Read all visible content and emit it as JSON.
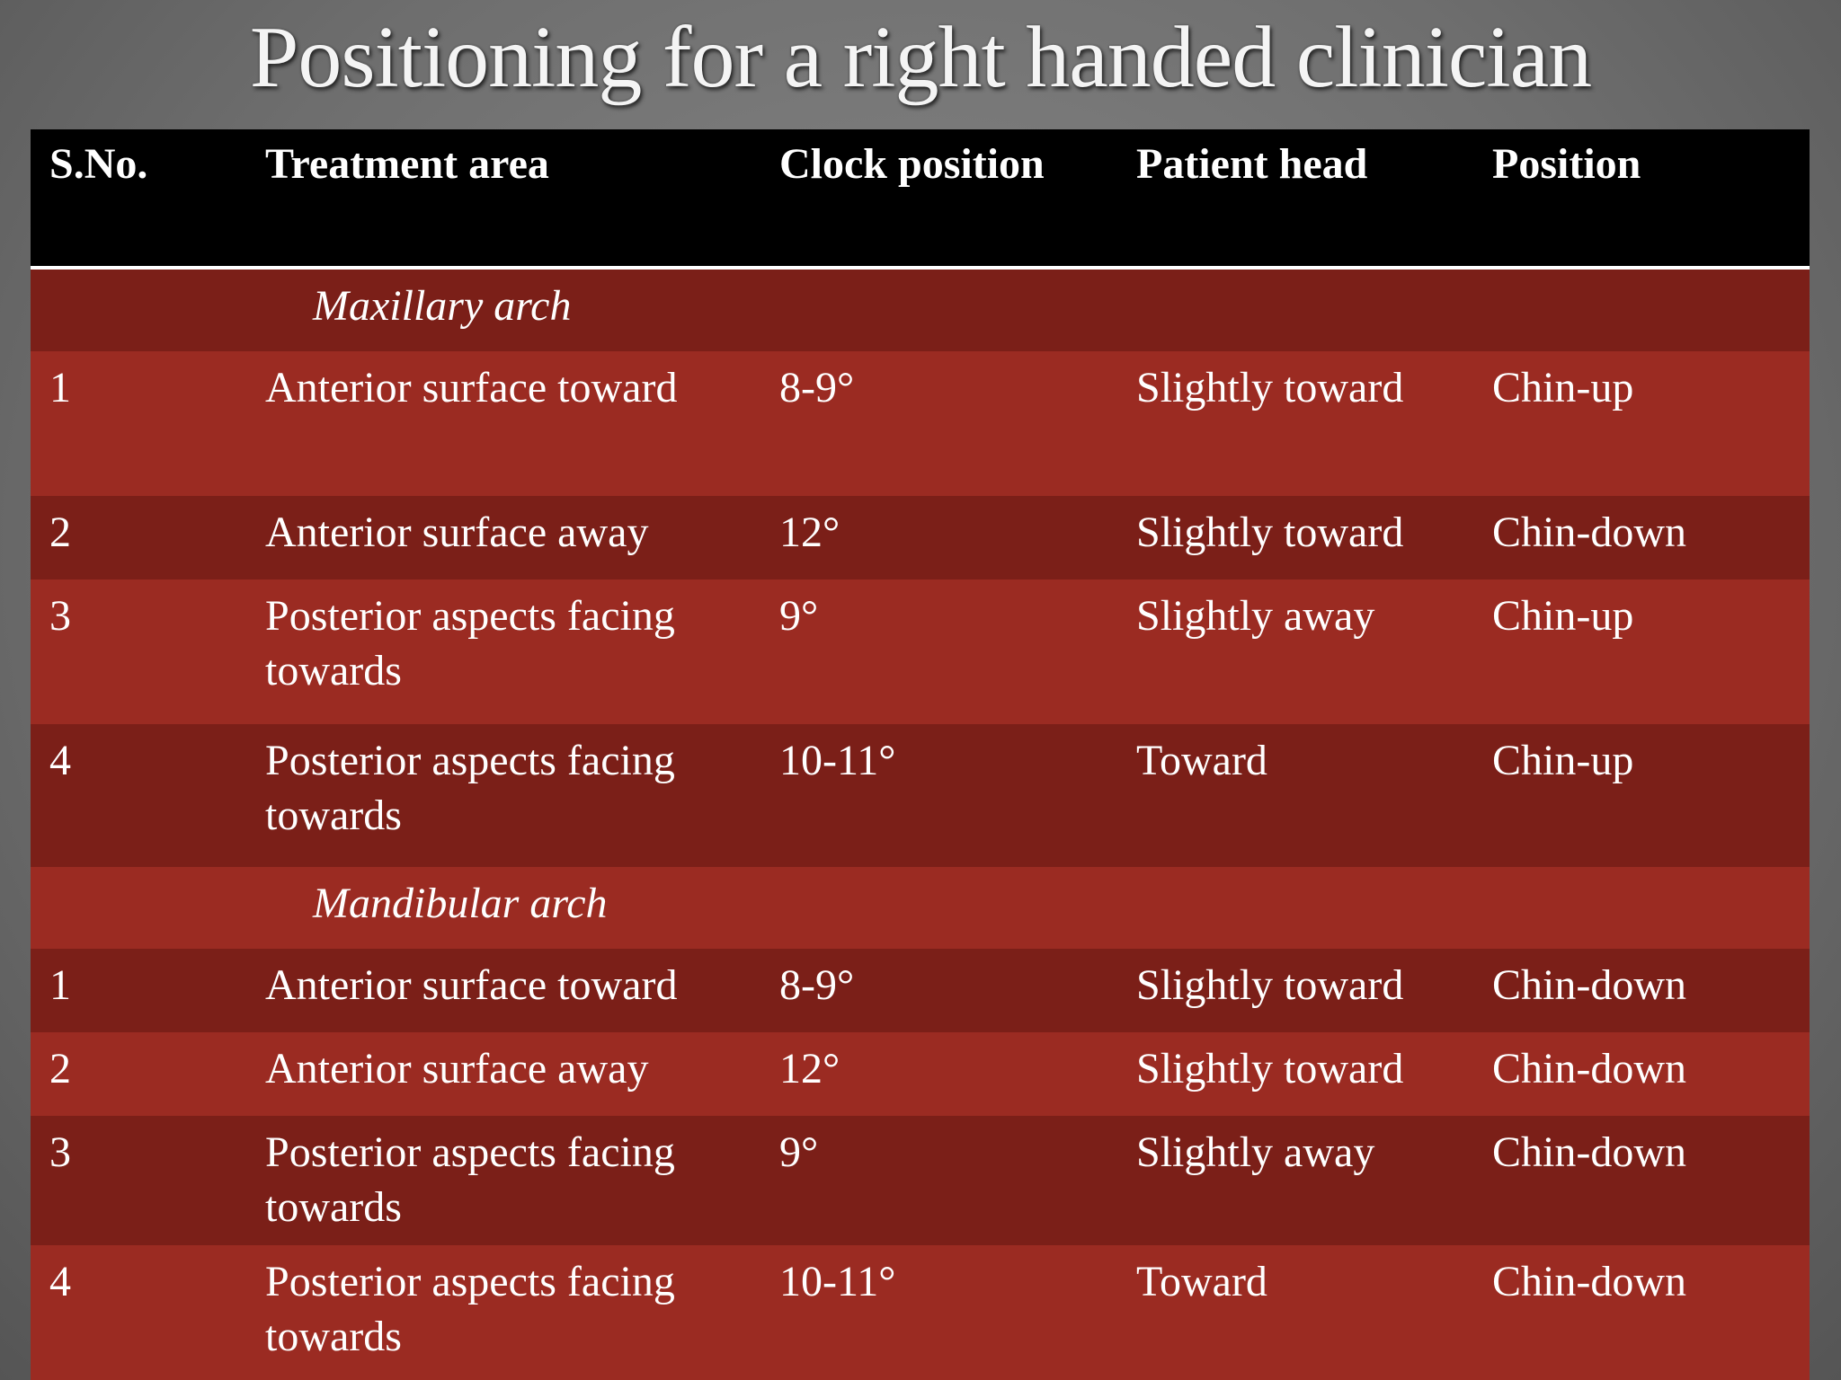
{
  "header": {
    "title": "Positioning for a right handed clinician"
  },
  "table": {
    "headers": [
      "S.No.",
      "Treatment area",
      "Clock position",
      "Patient head",
      "Position"
    ],
    "sections": [
      {
        "label": "Maxillary arch",
        "rows": [
          [
            "1",
            "Anterior surface toward",
            "8-9°",
            "Slightly toward",
            "Chin-up"
          ],
          [
            "2",
            "Anterior surface away",
            "12°",
            "Slightly toward",
            "Chin-down"
          ],
          [
            "3",
            "Posterior aspects facing towards",
            "9°",
            "Slightly away",
            "Chin-up"
          ],
          [
            "4",
            "Posterior aspects facing towards",
            "10-11°",
            "Toward",
            "Chin-up"
          ]
        ]
      },
      {
        "label": "Mandibular arch",
        "rows": [
          [
            "1",
            "Anterior surface toward",
            "8-9°",
            "Slightly toward",
            "Chin-down"
          ],
          [
            "2",
            "Anterior surface away",
            "12°",
            "Slightly toward",
            "Chin-down"
          ],
          [
            "3",
            "Posterior aspects facing towards",
            "9°",
            "Slightly away",
            "Chin-down"
          ],
          [
            "4",
            "Posterior aspects facing towards",
            "10-11°",
            "Toward",
            "Chin-down"
          ]
        ]
      }
    ]
  }
}
